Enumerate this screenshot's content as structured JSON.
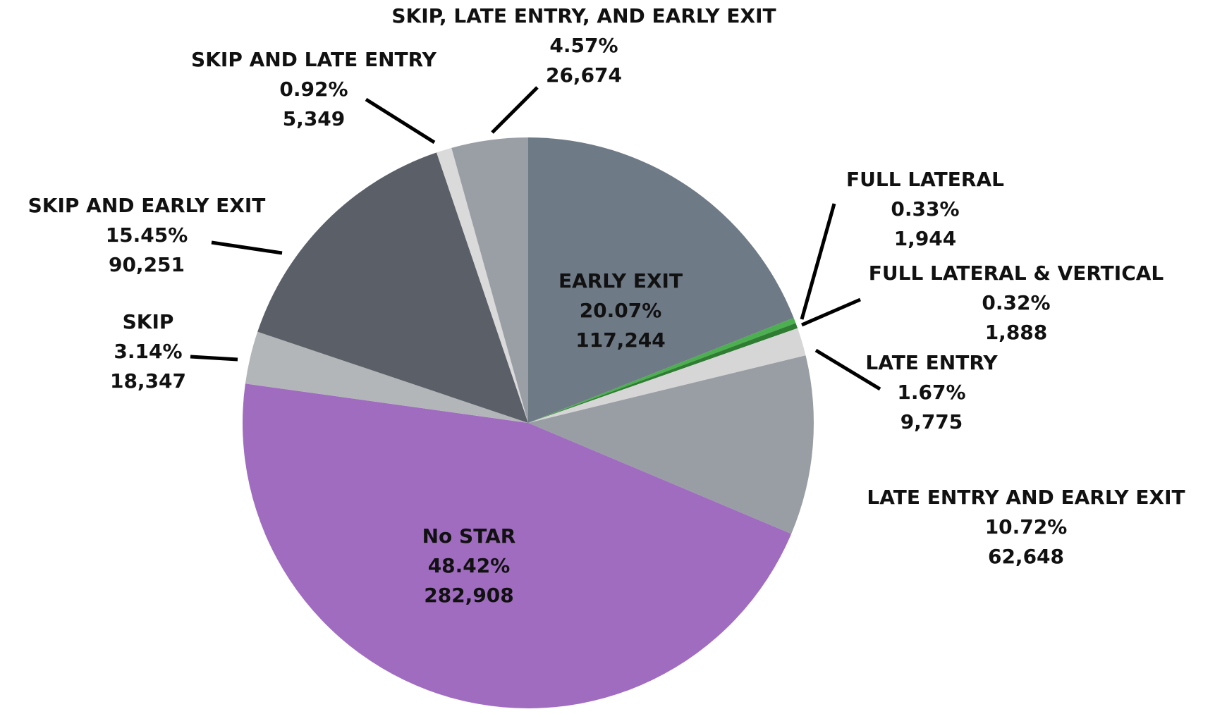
{
  "chart_data": {
    "type": "pie",
    "categories": [
      "EARLY EXIT",
      "FULL LATERAL",
      "FULL LATERAL & VERTICAL",
      "LATE ENTRY",
      "LATE ENTRY AND EARLY EXIT",
      "No STAR",
      "SKIP",
      "SKIP AND EARLY EXIT",
      "SKIP AND LATE ENTRY",
      "SKIP, LATE ENTRY, AND EARLY EXIT"
    ],
    "values": [
      20.07,
      0.33,
      0.32,
      1.67,
      10.72,
      48.42,
      3.14,
      15.45,
      0.92,
      4.57
    ],
    "value_labels": [
      "20.07%",
      "0.33%",
      "0.32%",
      "1.67%",
      "10.72%",
      "48.42%",
      "3.14%",
      "15.45%",
      "0.92%",
      "4.57%"
    ],
    "counts": [
      "117,244",
      "1,944",
      "1,888",
      "9,775",
      "62,648",
      "282,908",
      "18,347",
      "90,251",
      "5,349",
      "26,674"
    ],
    "colors": [
      "#6f7a87",
      "#4caf50",
      "#2e7d32",
      "#d6d6d6",
      "#999ea4",
      "#a06cc0",
      "#b3b6b8",
      "#5a5f68",
      "#dadada",
      "#9a9fa6"
    ]
  }
}
